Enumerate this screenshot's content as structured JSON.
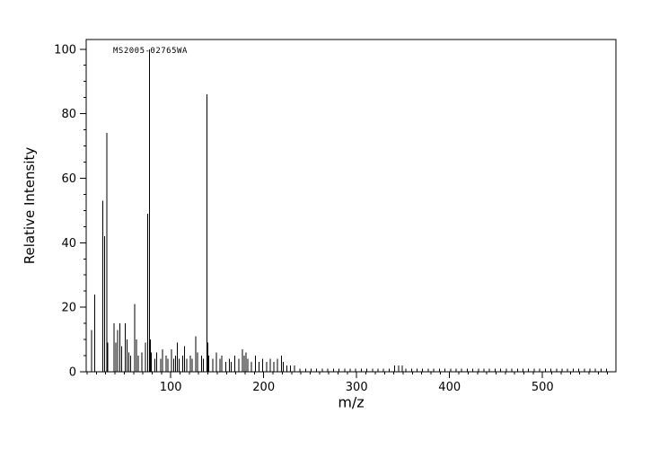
{
  "chart_data": {
    "type": "bar",
    "subtype": "mass-spectrum-stick-plot",
    "title": "",
    "xlabel": "m/z",
    "ylabel": "Relative Intensity",
    "annotation": "MS2005-02765WA",
    "xlim": [
      9,
      579
    ],
    "ylim": [
      0,
      103
    ],
    "x_ticks": [
      100,
      200,
      300,
      400,
      500
    ],
    "x_minor_step": 10,
    "y_ticks": [
      0,
      20,
      40,
      60,
      80,
      100
    ],
    "y_minor_step": 5,
    "grid": false,
    "legend": false,
    "line_color": "#000000",
    "background_color": "#ffffff",
    "peaks": [
      [
        15,
        13
      ],
      [
        18,
        24
      ],
      [
        27,
        53
      ],
      [
        29,
        42
      ],
      [
        31,
        74
      ],
      [
        32,
        9
      ],
      [
        39,
        15
      ],
      [
        41,
        9
      ],
      [
        43,
        13
      ],
      [
        45,
        15
      ],
      [
        47,
        8
      ],
      [
        51,
        15
      ],
      [
        53,
        10
      ],
      [
        55,
        6
      ],
      [
        57,
        5
      ],
      [
        61,
        21
      ],
      [
        63,
        10
      ],
      [
        65,
        5
      ],
      [
        69,
        6
      ],
      [
        73,
        9
      ],
      [
        75,
        49
      ],
      [
        77,
        100
      ],
      [
        78,
        10
      ],
      [
        79,
        6
      ],
      [
        83,
        4
      ],
      [
        85,
        6
      ],
      [
        89,
        4
      ],
      [
        91,
        7
      ],
      [
        95,
        5
      ],
      [
        97,
        4
      ],
      [
        101,
        7
      ],
      [
        103,
        4
      ],
      [
        105,
        5
      ],
      [
        107,
        9
      ],
      [
        109,
        4
      ],
      [
        113,
        5
      ],
      [
        115,
        8
      ],
      [
        117,
        4
      ],
      [
        121,
        5
      ],
      [
        123,
        4
      ],
      [
        127,
        11
      ],
      [
        129,
        6
      ],
      [
        133,
        5
      ],
      [
        135,
        4
      ],
      [
        139,
        86
      ],
      [
        140,
        9
      ],
      [
        141,
        5
      ],
      [
        145,
        4
      ],
      [
        149,
        6
      ],
      [
        153,
        4
      ],
      [
        155,
        5
      ],
      [
        159,
        3
      ],
      [
        163,
        4
      ],
      [
        165,
        3
      ],
      [
        169,
        5
      ],
      [
        173,
        4
      ],
      [
        177,
        7
      ],
      [
        179,
        5
      ],
      [
        181,
        6
      ],
      [
        183,
        4
      ],
      [
        187,
        3
      ],
      [
        191,
        5
      ],
      [
        195,
        3
      ],
      [
        199,
        4
      ],
      [
        203,
        3
      ],
      [
        207,
        4
      ],
      [
        211,
        3
      ],
      [
        215,
        4
      ],
      [
        219,
        5
      ],
      [
        221,
        3
      ],
      [
        225,
        2
      ],
      [
        229,
        2
      ],
      [
        233,
        2
      ],
      [
        239,
        1
      ],
      [
        245,
        1
      ],
      [
        251,
        1
      ],
      [
        257,
        1
      ],
      [
        263,
        1
      ],
      [
        269,
        1
      ],
      [
        275,
        1
      ],
      [
        281,
        1
      ],
      [
        287,
        1
      ],
      [
        293,
        1
      ],
      [
        299,
        1
      ],
      [
        305,
        1
      ],
      [
        311,
        1
      ],
      [
        317,
        1
      ],
      [
        323,
        1
      ],
      [
        329,
        1
      ],
      [
        335,
        1
      ],
      [
        341,
        2
      ],
      [
        345,
        2
      ],
      [
        349,
        2
      ],
      [
        353,
        1
      ],
      [
        359,
        1
      ],
      [
        365,
        1
      ],
      [
        371,
        1
      ],
      [
        377,
        1
      ],
      [
        383,
        1
      ],
      [
        389,
        1
      ],
      [
        395,
        1
      ],
      [
        401,
        1
      ],
      [
        407,
        1
      ],
      [
        413,
        1
      ],
      [
        419,
        1
      ],
      [
        425,
        1
      ],
      [
        431,
        1
      ],
      [
        437,
        1
      ],
      [
        443,
        1
      ],
      [
        449,
        1
      ],
      [
        455,
        1
      ],
      [
        461,
        1
      ],
      [
        467,
        1
      ],
      [
        473,
        1
      ],
      [
        479,
        1
      ],
      [
        485,
        1
      ],
      [
        491,
        1
      ],
      [
        497,
        1
      ],
      [
        503,
        1
      ],
      [
        509,
        1
      ],
      [
        515,
        1
      ],
      [
        521,
        1
      ],
      [
        527,
        1
      ],
      [
        533,
        1
      ],
      [
        539,
        1
      ],
      [
        545,
        1
      ],
      [
        551,
        1
      ],
      [
        557,
        1
      ],
      [
        563,
        1
      ],
      [
        569,
        1
      ]
    ]
  }
}
